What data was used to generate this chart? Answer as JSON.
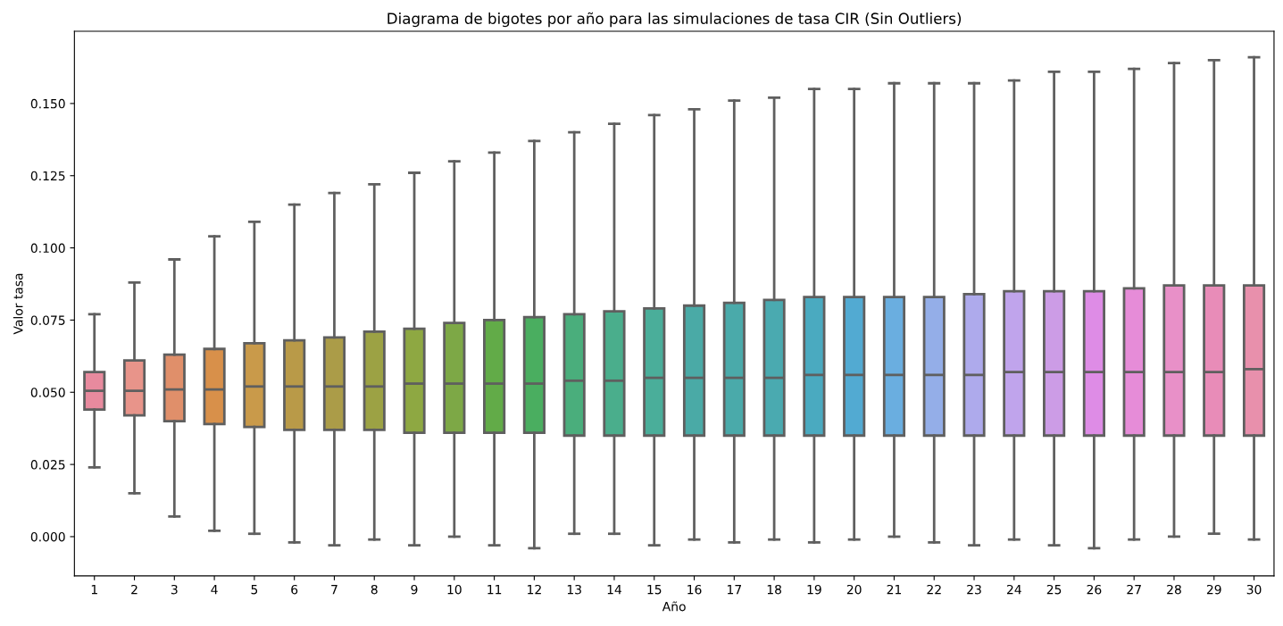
{
  "chart_data": {
    "type": "box",
    "title": "Diagrama de bigotes por año para las simulaciones de tasa CIR (Sin Outliers)",
    "xlabel": "Año",
    "ylabel": "Valor tasa",
    "categories": [
      "1",
      "2",
      "3",
      "4",
      "5",
      "6",
      "7",
      "8",
      "9",
      "10",
      "11",
      "12",
      "13",
      "14",
      "15",
      "16",
      "17",
      "18",
      "19",
      "20",
      "21",
      "22",
      "23",
      "24",
      "25",
      "26",
      "27",
      "28",
      "29",
      "30"
    ],
    "colors": [
      "#e88a9e",
      "#e8948a",
      "#e08f6a",
      "#d8904a",
      "#c99a4a",
      "#b99a48",
      "#ab9c48",
      "#9ca244",
      "#8ea842",
      "#7da846",
      "#62ab48",
      "#4aae60",
      "#4aae7c",
      "#4aae8c",
      "#4aae9a",
      "#4aaaa6",
      "#4aaaaa",
      "#4aaab0",
      "#4aaac0",
      "#52aad2",
      "#6aaee0",
      "#94aee8",
      "#aeaaec",
      "#c0a4ec",
      "#cc9ce6",
      "#de8ce6",
      "#e68cd8",
      "#e890c8",
      "#e88cb8",
      "#e890ac"
    ],
    "boxes": [
      {
        "low": 0.024,
        "q1": 0.044,
        "median": 0.0505,
        "q3": 0.057,
        "high": 0.077
      },
      {
        "low": 0.015,
        "q1": 0.042,
        "median": 0.0505,
        "q3": 0.061,
        "high": 0.088
      },
      {
        "low": 0.007,
        "q1": 0.04,
        "median": 0.051,
        "q3": 0.063,
        "high": 0.096
      },
      {
        "low": 0.002,
        "q1": 0.039,
        "median": 0.051,
        "q3": 0.065,
        "high": 0.104
      },
      {
        "low": 0.001,
        "q1": 0.038,
        "median": 0.052,
        "q3": 0.067,
        "high": 0.109
      },
      {
        "low": -0.002,
        "q1": 0.037,
        "median": 0.052,
        "q3": 0.068,
        "high": 0.115
      },
      {
        "low": -0.003,
        "q1": 0.037,
        "median": 0.052,
        "q3": 0.069,
        "high": 0.119
      },
      {
        "low": -0.001,
        "q1": 0.037,
        "median": 0.052,
        "q3": 0.071,
        "high": 0.122
      },
      {
        "low": -0.003,
        "q1": 0.036,
        "median": 0.053,
        "q3": 0.072,
        "high": 0.126
      },
      {
        "low": 0.0,
        "q1": 0.036,
        "median": 0.053,
        "q3": 0.074,
        "high": 0.13
      },
      {
        "low": -0.003,
        "q1": 0.036,
        "median": 0.053,
        "q3": 0.075,
        "high": 0.133
      },
      {
        "low": -0.004,
        "q1": 0.036,
        "median": 0.053,
        "q3": 0.076,
        "high": 0.137
      },
      {
        "low": 0.001,
        "q1": 0.035,
        "median": 0.054,
        "q3": 0.077,
        "high": 0.14
      },
      {
        "low": 0.001,
        "q1": 0.035,
        "median": 0.054,
        "q3": 0.078,
        "high": 0.143
      },
      {
        "low": -0.003,
        "q1": 0.035,
        "median": 0.055,
        "q3": 0.079,
        "high": 0.146
      },
      {
        "low": -0.001,
        "q1": 0.035,
        "median": 0.055,
        "q3": 0.08,
        "high": 0.148
      },
      {
        "low": -0.002,
        "q1": 0.035,
        "median": 0.055,
        "q3": 0.081,
        "high": 0.151
      },
      {
        "low": -0.001,
        "q1": 0.035,
        "median": 0.055,
        "q3": 0.082,
        "high": 0.152
      },
      {
        "low": -0.002,
        "q1": 0.035,
        "median": 0.056,
        "q3": 0.083,
        "high": 0.155
      },
      {
        "low": -0.001,
        "q1": 0.035,
        "median": 0.056,
        "q3": 0.083,
        "high": 0.155
      },
      {
        "low": 0.0,
        "q1": 0.035,
        "median": 0.056,
        "q3": 0.083,
        "high": 0.157
      },
      {
        "low": -0.002,
        "q1": 0.035,
        "median": 0.056,
        "q3": 0.083,
        "high": 0.157
      },
      {
        "low": -0.003,
        "q1": 0.035,
        "median": 0.056,
        "q3": 0.084,
        "high": 0.157
      },
      {
        "low": -0.001,
        "q1": 0.035,
        "median": 0.057,
        "q3": 0.085,
        "high": 0.158
      },
      {
        "low": -0.003,
        "q1": 0.035,
        "median": 0.057,
        "q3": 0.085,
        "high": 0.161
      },
      {
        "low": -0.004,
        "q1": 0.035,
        "median": 0.057,
        "q3": 0.085,
        "high": 0.161
      },
      {
        "low": -0.001,
        "q1": 0.035,
        "median": 0.057,
        "q3": 0.086,
        "high": 0.162
      },
      {
        "low": 0.0,
        "q1": 0.035,
        "median": 0.057,
        "q3": 0.087,
        "high": 0.164
      },
      {
        "low": 0.001,
        "q1": 0.035,
        "median": 0.057,
        "q3": 0.087,
        "high": 0.165
      },
      {
        "low": -0.001,
        "q1": 0.035,
        "median": 0.058,
        "q3": 0.087,
        "high": 0.166
      }
    ],
    "ylim": [
      -0.0136,
      0.175
    ],
    "yticks": [
      {
        "value": 0,
        "label": "0.000"
      },
      {
        "value": 0.025,
        "label": "0.025"
      },
      {
        "value": 0.05,
        "label": "0.050"
      },
      {
        "value": 0.075,
        "label": "0.075"
      },
      {
        "value": 0.1,
        "label": "0.100"
      },
      {
        "value": 0.125,
        "label": "0.125"
      },
      {
        "value": 0.15,
        "label": "0.150"
      }
    ],
    "grid": false
  }
}
